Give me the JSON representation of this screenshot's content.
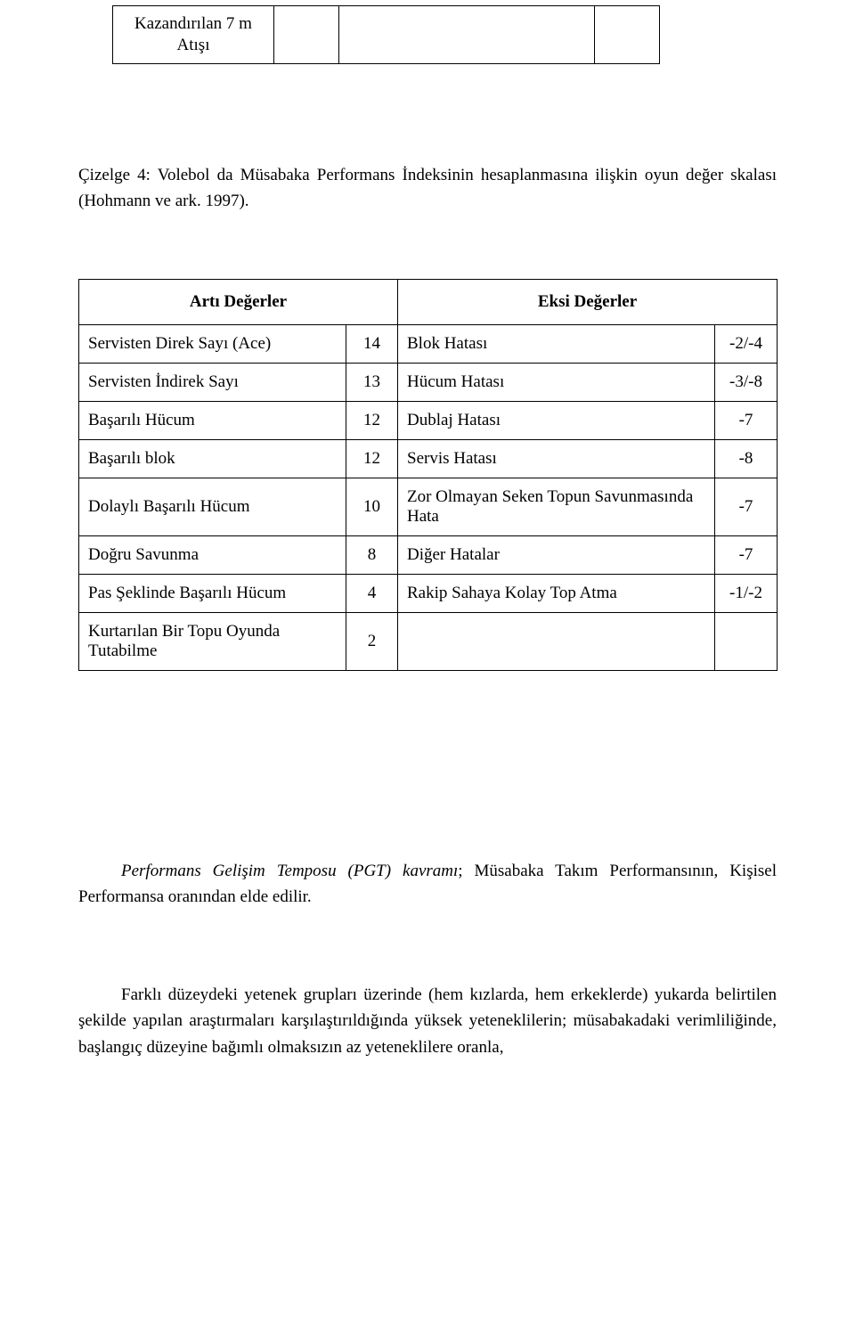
{
  "top_table": {
    "cell1_line1": "Kazandırılan 7 m",
    "cell1_line2": "Atışı"
  },
  "caption": {
    "text": "Çizelge 4: Volebol da Müsabaka Performans İndeksinin hesaplanmasına ilişkin oyun değer skalası (Hohmann ve ark. 1997)."
  },
  "table": {
    "header_left": "Artı Değerler",
    "header_right": "Eksi Değerler",
    "rows": [
      {
        "label": "Servisten Direk Sayı (Ace)",
        "lval": "14",
        "desc": "Blok Hatası",
        "rval": "-2/-4"
      },
      {
        "label": "Servisten İndirek Sayı",
        "lval": "13",
        "desc": "Hücum Hatası",
        "rval": "-3/-8"
      },
      {
        "label": "Başarılı Hücum",
        "lval": "12",
        "desc": "Dublaj Hatası",
        "rval": "-7"
      },
      {
        "label": "Başarılı blok",
        "lval": "12",
        "desc": "Servis Hatası",
        "rval": "-8"
      },
      {
        "label": "Dolaylı Başarılı Hücum",
        "lval": "10",
        "desc": "Zor Olmayan Seken Topun Savunmasında Hata",
        "rval": "-7"
      },
      {
        "label": "Doğru Savunma",
        "lval": "8",
        "desc": "Diğer Hatalar",
        "rval": "-7"
      },
      {
        "label": "Pas Şeklinde Başarılı Hücum",
        "lval": "4",
        "desc": "Rakip Sahaya Kolay Top Atma",
        "rval": "-1/-2"
      },
      {
        "label": "Kurtarılan Bir Topu Oyunda Tutabilme",
        "lval": "2",
        "desc": "",
        "rval": ""
      }
    ]
  },
  "para1": {
    "lead_italic": "Performans Gelişim Temposu (PGT) kavramı",
    "rest": "; Müsabaka Takım Performansının, Kişisel Performansa oranından elde edilir."
  },
  "para2": {
    "text": "Farklı düzeydeki yetenek grupları üzerinde (hem kızlarda, hem erkeklerde) yukarda belirtilen şekilde yapılan araştırmaları karşılaştırıldığında yüksek yeteneklilerin; müsabakadaki verimliliğinde, başlangıç düzeyine bağımlı olmaksızın az yeteneklilere oranla,"
  }
}
